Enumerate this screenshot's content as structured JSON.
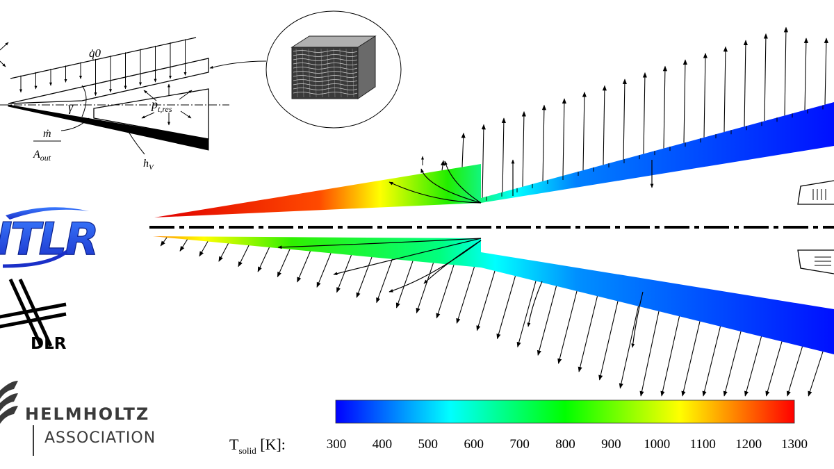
{
  "schematic": {
    "heat_flux": "q̇0",
    "angle": "γ",
    "pressure": "p",
    "pressure_sub": "t,res",
    "mass_flow_num": "ṁ",
    "mass_flow_den": "A",
    "mass_flow_den_sub": "out",
    "heat_transfer": "h",
    "heat_transfer_sub": "V"
  },
  "logos": {
    "itlr": "ITLR",
    "dlr": "DLR",
    "helmholtz_line1": "HELMHOLTZ",
    "helmholtz_line2": "ASSOCIATION"
  },
  "colorbar": {
    "label_main": "T",
    "label_sub": "solid",
    "label_unit": " [K]:",
    "ticks": [
      "300",
      "400",
      "500",
      "600",
      "700",
      "800",
      "900",
      "1000",
      "1100",
      "1200",
      "1300"
    ],
    "colors": [
      "#0000ff",
      "#00ffff",
      "#00ff00",
      "#ffff00",
      "#ff0000"
    ]
  }
}
